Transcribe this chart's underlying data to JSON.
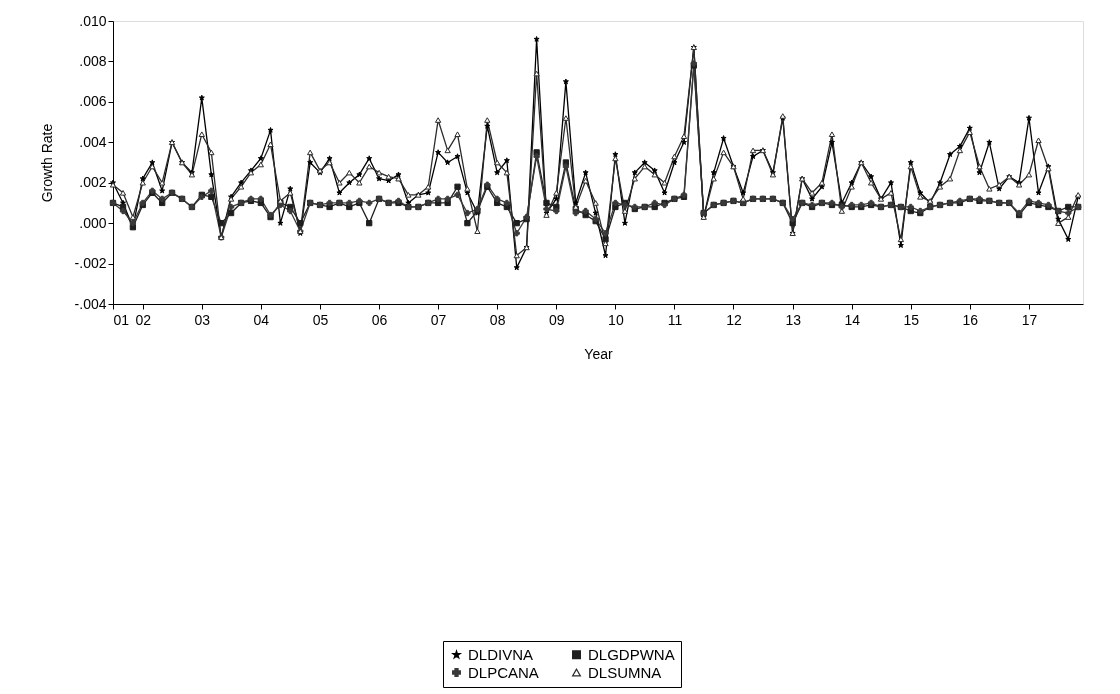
{
  "chart_data": {
    "type": "line",
    "xlabel": "Year",
    "ylabel": "Growth Rate",
    "x": [
      "2001-07",
      "2001-09",
      "2001-11",
      "2002-01",
      "2002-03",
      "2002-05",
      "2002-07",
      "2002-09",
      "2002-11",
      "2003-01",
      "2003-03",
      "2003-05",
      "2003-07",
      "2003-09",
      "2003-11",
      "2004-01",
      "2004-03",
      "2004-05",
      "2004-07",
      "2004-09",
      "2004-11",
      "2005-01",
      "2005-03",
      "2005-05",
      "2005-07",
      "2005-09",
      "2005-11",
      "2006-01",
      "2006-03",
      "2006-05",
      "2006-07",
      "2006-09",
      "2006-11",
      "2007-01",
      "2007-03",
      "2007-05",
      "2007-07",
      "2007-09",
      "2007-11",
      "2008-01",
      "2008-03",
      "2008-05",
      "2008-07",
      "2008-09",
      "2008-11",
      "2009-01",
      "2009-03",
      "2009-05",
      "2009-07",
      "2009-09",
      "2009-11",
      "2010-01",
      "2010-03",
      "2010-05",
      "2010-07",
      "2010-09",
      "2010-11",
      "2011-01",
      "2011-03",
      "2011-05",
      "2011-07",
      "2011-09",
      "2011-11",
      "2012-01",
      "2012-03",
      "2012-05",
      "2012-07",
      "2012-09",
      "2012-11",
      "2013-01",
      "2013-03",
      "2013-05",
      "2013-07",
      "2013-09",
      "2013-11",
      "2014-01",
      "2014-03",
      "2014-05",
      "2014-07",
      "2014-09",
      "2014-11",
      "2015-01",
      "2015-03",
      "2015-05",
      "2015-07",
      "2015-09",
      "2015-11",
      "2016-01",
      "2016-03",
      "2016-05",
      "2016-07",
      "2016-09",
      "2016-11",
      "2017-01",
      "2017-03",
      "2017-05",
      "2017-07",
      "2017-09",
      "2017-11"
    ],
    "series": [
      {
        "name": "DLDIVNA",
        "color": "#000000",
        "marker": "star",
        "values": [
          0.002,
          0.001,
          -0.0002,
          0.0022,
          0.003,
          0.0016,
          0.004,
          0.003,
          0.0025,
          0.0062,
          0.0024,
          -0.0007,
          0.0013,
          0.002,
          0.0026,
          0.0032,
          0.0046,
          0.0,
          0.0017,
          -0.0005,
          0.003,
          0.0025,
          0.0032,
          0.0015,
          0.002,
          0.0024,
          0.0032,
          0.0022,
          0.0021,
          0.0024,
          0.001,
          0.0014,
          0.0015,
          0.0035,
          0.003,
          0.0033,
          0.0015,
          0.0005,
          0.0048,
          0.0025,
          0.0031,
          -0.0022,
          -0.0012,
          0.0091,
          0.0005,
          0.0012,
          0.007,
          0.001,
          0.0025,
          0.0005,
          -0.0016,
          0.0034,
          0.0,
          0.0025,
          0.003,
          0.0026,
          0.0015,
          0.003,
          0.004,
          0.0087,
          0.0003,
          0.0025,
          0.0042,
          0.0028,
          0.0015,
          0.0033,
          0.0036,
          0.0025,
          0.0052,
          -0.0005,
          0.0022,
          0.0012,
          0.0018,
          0.004,
          0.001,
          0.002,
          0.003,
          0.0023,
          0.0012,
          0.002,
          -0.0011,
          0.003,
          0.0015,
          0.001,
          0.002,
          0.0034,
          0.0038,
          0.0047,
          0.0025,
          0.004,
          0.0017,
          0.0023,
          0.002,
          0.0052,
          0.0015,
          0.0028,
          0.0002,
          -0.0008,
          0.0013
        ]
      },
      {
        "name": "DLGDPWNA",
        "color": "#1e1e1e",
        "marker": "square",
        "values": [
          0.001,
          0.0008,
          -0.0002,
          0.0009,
          0.0015,
          0.001,
          0.0015,
          0.0012,
          0.0008,
          0.0014,
          0.0013,
          0.0,
          0.0005,
          0.001,
          0.0011,
          0.001,
          0.0003,
          0.001,
          0.0008,
          0.0,
          0.001,
          0.0009,
          0.0008,
          0.001,
          0.0008,
          0.001,
          0.0,
          0.0012,
          0.001,
          0.001,
          0.0008,
          0.0008,
          0.001,
          0.001,
          0.001,
          0.0018,
          0.0,
          0.0006,
          0.0018,
          0.001,
          0.0008,
          0.0,
          0.0002,
          0.0035,
          0.001,
          0.0008,
          0.003,
          0.0007,
          0.0004,
          0.0001,
          -0.0008,
          0.0008,
          0.001,
          0.0007,
          0.0008,
          0.0008,
          0.001,
          0.0012,
          0.0013,
          0.0078,
          0.0005,
          0.0009,
          0.001,
          0.0011,
          0.001,
          0.0012,
          0.0012,
          0.0012,
          0.001,
          0.0,
          0.001,
          0.0008,
          0.001,
          0.0009,
          0.0009,
          0.0008,
          0.0008,
          0.0009,
          0.0008,
          0.0009,
          0.0008,
          0.0006,
          0.0005,
          0.0008,
          0.0009,
          0.001,
          0.001,
          0.0012,
          0.0011,
          0.0011,
          0.001,
          0.001,
          0.0004,
          0.001,
          0.0009,
          0.0008,
          0.0006,
          0.0008,
          0.0008
        ]
      },
      {
        "name": "DLPCANA",
        "color": "#3a3a3a",
        "marker": "cross",
        "values": [
          0.001,
          0.0006,
          0.0,
          0.001,
          0.0016,
          0.0012,
          0.0015,
          0.0012,
          0.0008,
          0.0013,
          0.0016,
          -0.0007,
          0.0008,
          0.001,
          0.0012,
          0.0012,
          0.0004,
          0.0009,
          0.0006,
          -0.0004,
          0.001,
          0.0009,
          0.001,
          0.001,
          0.001,
          0.0011,
          0.001,
          0.0012,
          0.001,
          0.0011,
          0.0008,
          0.0008,
          0.001,
          0.0012,
          0.0012,
          0.0014,
          0.0005,
          0.0007,
          0.0019,
          0.0012,
          0.001,
          -0.0005,
          0.0003,
          0.0033,
          0.0007,
          0.0006,
          0.0028,
          0.0005,
          0.0006,
          0.0002,
          -0.0005,
          0.001,
          0.0009,
          0.0008,
          0.0008,
          0.001,
          0.0009,
          0.0012,
          0.0014,
          0.0079,
          0.0005,
          0.0009,
          0.001,
          0.0011,
          0.001,
          0.0012,
          0.0012,
          0.0012,
          0.001,
          0.0002,
          0.001,
          0.0009,
          0.001,
          0.001,
          0.0008,
          0.0009,
          0.0009,
          0.001,
          0.0008,
          0.0009,
          0.0008,
          0.0008,
          0.0006,
          0.0008,
          0.0009,
          0.001,
          0.0011,
          0.0012,
          0.0012,
          0.0011,
          0.001,
          0.001,
          0.0005,
          0.0011,
          0.001,
          0.0009,
          0.0006,
          0.0005,
          0.0008
        ]
      },
      {
        "name": "DLSUMNA",
        "color": "#2c2c2c",
        "marker": "triangle",
        "values": [
          0.0019,
          0.0015,
          0.0003,
          0.002,
          0.0028,
          0.002,
          0.004,
          0.003,
          0.0024,
          0.0044,
          0.0035,
          -0.0007,
          0.0012,
          0.0018,
          0.0025,
          0.0029,
          0.0039,
          0.0011,
          0.0015,
          -0.0004,
          0.0035,
          0.0026,
          0.003,
          0.002,
          0.0025,
          0.002,
          0.0028,
          0.0025,
          0.0023,
          0.0022,
          0.0014,
          0.0014,
          0.0018,
          0.0051,
          0.0036,
          0.0044,
          0.0017,
          -0.0004,
          0.0051,
          0.003,
          0.0025,
          -0.0016,
          -0.0012,
          0.0074,
          0.0004,
          0.0015,
          0.0052,
          0.0008,
          0.0021,
          0.001,
          -0.001,
          0.0032,
          0.0006,
          0.0022,
          0.0028,
          0.0024,
          0.002,
          0.0033,
          0.0043,
          0.0087,
          0.0003,
          0.0022,
          0.0035,
          0.0028,
          0.0012,
          0.0036,
          0.0036,
          0.0024,
          0.0053,
          -0.0005,
          0.0022,
          0.0015,
          0.002,
          0.0044,
          0.0006,
          0.0018,
          0.003,
          0.002,
          0.0012,
          0.0015,
          -0.0008,
          0.0028,
          0.0013,
          0.0011,
          0.0018,
          0.0022,
          0.0036,
          0.0045,
          0.0028,
          0.0017,
          0.0019,
          0.0023,
          0.0019,
          0.0024,
          0.0041,
          0.0027,
          0.0,
          0.0003,
          0.0014
        ]
      }
    ],
    "xlim": [
      "2001-07",
      "2017-12"
    ],
    "xticks": [
      {
        "value": "2001-07",
        "label": "01"
      },
      {
        "value": "2002-01",
        "label": "02"
      },
      {
        "value": "2003-01",
        "label": "03"
      },
      {
        "value": "2004-01",
        "label": "04"
      },
      {
        "value": "2005-01",
        "label": "05"
      },
      {
        "value": "2006-01",
        "label": "06"
      },
      {
        "value": "2007-01",
        "label": "07"
      },
      {
        "value": "2008-01",
        "label": "08"
      },
      {
        "value": "2009-01",
        "label": "09"
      },
      {
        "value": "2010-01",
        "label": "10"
      },
      {
        "value": "2011-01",
        "label": "11"
      },
      {
        "value": "2012-01",
        "label": "12"
      },
      {
        "value": "2013-01",
        "label": "13"
      },
      {
        "value": "2014-01",
        "label": "14"
      },
      {
        "value": "2015-01",
        "label": "15"
      },
      {
        "value": "2016-01",
        "label": "16"
      },
      {
        "value": "2017-01",
        "label": "17"
      }
    ],
    "ylim": [
      -0.004,
      0.01
    ],
    "yticks": [
      {
        "value": -0.004,
        "label": "-.004"
      },
      {
        "value": -0.002,
        "label": "-.002"
      },
      {
        "value": 0.0,
        "label": ".000"
      },
      {
        "value": 0.002,
        "label": ".002"
      },
      {
        "value": 0.004,
        "label": ".004"
      },
      {
        "value": 0.006,
        "label": ".006"
      },
      {
        "value": 0.008,
        "label": ".008"
      },
      {
        "value": 0.01,
        "label": ".010"
      }
    ],
    "grid": false,
    "legend": "bottom",
    "line_style": "solid"
  }
}
